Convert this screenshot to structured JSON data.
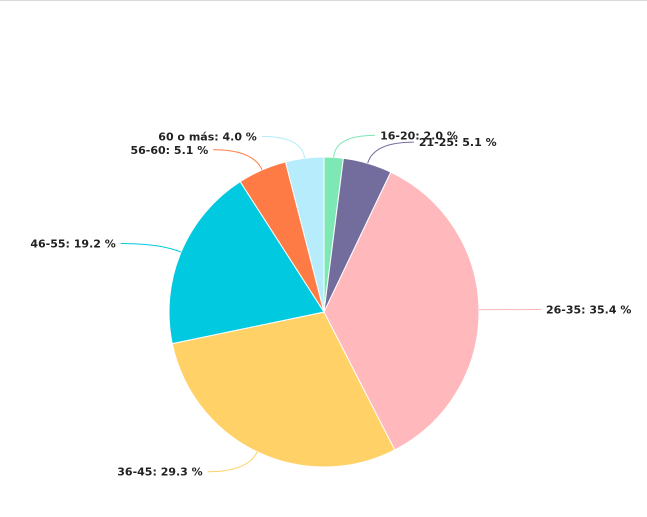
{
  "chart_data": {
    "type": "pie",
    "title": "",
    "categories": [
      "16-20",
      "21-25",
      "26-35",
      "36-45",
      "46-55",
      "56-60",
      "60 o más"
    ],
    "values": [
      2.0,
      5.1,
      35.4,
      29.3,
      19.2,
      5.1,
      4.0
    ],
    "unit": "%",
    "labels": [
      "16-20: 2.0 %",
      "21-25: 5.1 %",
      "26-35: 35.4 %",
      "36-45: 29.3 %",
      "46-55: 19.2 %",
      "56-60: 5.1 %",
      "60 o más: 4.0 %"
    ],
    "colors": [
      "#7ee8b4",
      "#736d9e",
      "#ffb8bb",
      "#ffd166",
      "#00c9e0",
      "#ff7b45",
      "#b6ecfb"
    ],
    "start_angle": "top",
    "direction": "clockwise",
    "legend": "none"
  }
}
